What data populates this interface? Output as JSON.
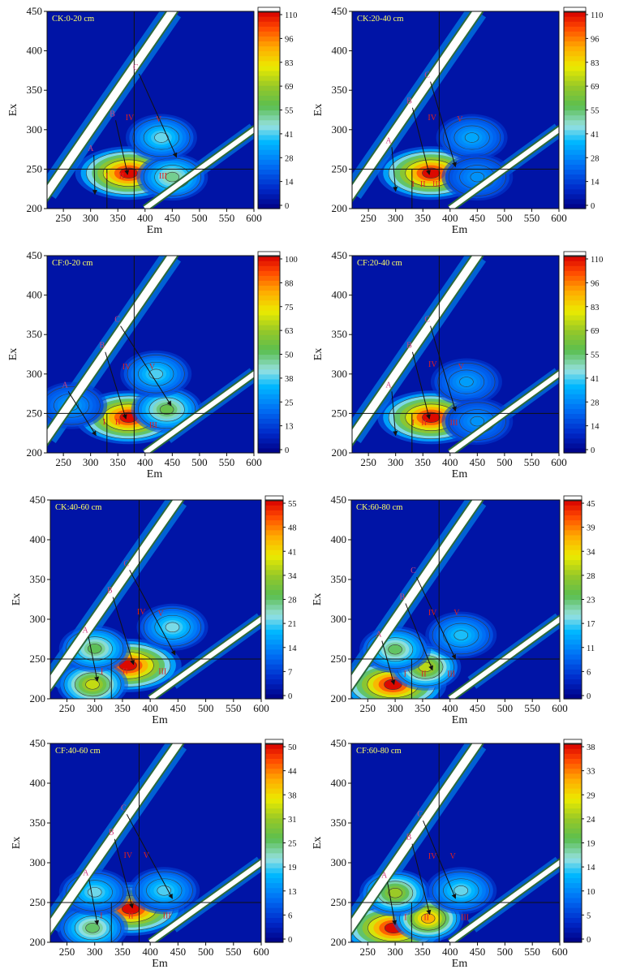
{
  "chart_data": [
    {
      "type": "heatmap",
      "title": "CK:0-20 cm",
      "xlabel": "Em",
      "ylabel": "Ex",
      "xlim": [
        220,
        600
      ],
      "ylim": [
        200,
        450
      ],
      "xticks": [
        "250",
        "300",
        "350",
        "400",
        "450",
        "500",
        "550",
        "600"
      ],
      "yticks": [
        "200",
        "250",
        "300",
        "350",
        "400",
        "450"
      ],
      "colorbar": {
        "min": 0,
        "max": 110,
        "ticks": [
          "0",
          "14",
          "28",
          "41",
          "55",
          "69",
          "83",
          "96",
          "110"
        ]
      },
      "region_lines": {
        "em": [
          330,
          380
        ],
        "ex": 250
      },
      "peaks": [
        {
          "em": 370,
          "ex": 245,
          "value": 110
        },
        {
          "em": 450,
          "ex": 240,
          "value": 45
        },
        {
          "em": 430,
          "ex": 290,
          "value": 35
        }
      ],
      "labels": [
        {
          "text": "A",
          "em": 300,
          "ex": 273,
          "to": [
            308,
            218
          ]
        },
        {
          "text": "B",
          "em": 340,
          "ex": 317,
          "to": [
            368,
            243
          ]
        },
        {
          "text": "C",
          "em": 383,
          "ex": 376,
          "to": [
            458,
            265
          ]
        },
        {
          "text": "I",
          "em": 330,
          "ex": 238
        },
        {
          "text": "II",
          "em": 357,
          "ex": 238
        },
        {
          "text": "III",
          "em": 433,
          "ex": 238
        },
        {
          "text": "IV",
          "em": 372,
          "ex": 312
        },
        {
          "text": "V",
          "em": 425,
          "ex": 310
        }
      ]
    },
    {
      "type": "heatmap",
      "title": "CK:20-40 cm",
      "xlabel": "Em",
      "ylabel": "Ex",
      "xlim": [
        220,
        600
      ],
      "ylim": [
        200,
        450
      ],
      "xticks": [
        "250",
        "300",
        "350",
        "400",
        "450",
        "500",
        "550",
        "600"
      ],
      "yticks": [
        "200",
        "250",
        "300",
        "350",
        "400",
        "450"
      ],
      "colorbar": {
        "min": 0,
        "max": 110,
        "ticks": [
          "0",
          "14",
          "28",
          "41",
          "55",
          "69",
          "83",
          "96",
          "110"
        ]
      },
      "region_lines": {
        "em": [
          330,
          380
        ],
        "ex": 250
      },
      "peaks": [
        {
          "em": 365,
          "ex": 245,
          "value": 110
        },
        {
          "em": 440,
          "ex": 290,
          "value": 24
        },
        {
          "em": 450,
          "ex": 240,
          "value": 20
        }
      ],
      "labels": [
        {
          "text": "A",
          "em": 287,
          "ex": 283,
          "to": [
            300,
            222
          ]
        },
        {
          "text": "B",
          "em": 325,
          "ex": 333,
          "to": [
            362,
            243
          ]
        },
        {
          "text": "C",
          "em": 358,
          "ex": 366,
          "to": [
            410,
            253
          ]
        },
        {
          "text": "I",
          "em": 332,
          "ex": 228
        },
        {
          "text": "II",
          "em": 350,
          "ex": 228
        },
        {
          "text": "III",
          "em": 375,
          "ex": 228
        },
        {
          "text": "IV",
          "em": 367,
          "ex": 312
        },
        {
          "text": "V",
          "em": 418,
          "ex": 310
        }
      ]
    },
    {
      "type": "heatmap",
      "title": "CF:0-20 cm",
      "xlabel": "Em",
      "ylabel": "Ex",
      "xlim": [
        220,
        600
      ],
      "ylim": [
        200,
        450
      ],
      "xticks": [
        "250",
        "300",
        "350",
        "400",
        "450",
        "500",
        "550",
        "600"
      ],
      "yticks": [
        "200",
        "250",
        "300",
        "350",
        "400",
        "450"
      ],
      "colorbar": {
        "min": 0,
        "max": 100,
        "ticks": [
          "0",
          "13",
          "25",
          "38",
          "50",
          "63",
          "75",
          "88",
          "100"
        ]
      },
      "region_lines": {
        "em": [
          330,
          380
        ],
        "ex": 250
      },
      "peaks": [
        {
          "em": 370,
          "ex": 245,
          "value": 100
        },
        {
          "em": 440,
          "ex": 255,
          "value": 48
        },
        {
          "em": 420,
          "ex": 300,
          "value": 30
        },
        {
          "em": 265,
          "ex": 260,
          "value": 20
        }
      ],
      "labels": [
        {
          "text": "A",
          "em": 253,
          "ex": 283,
          "to": [
            310,
            222
          ]
        },
        {
          "text": "B",
          "em": 321,
          "ex": 333,
          "to": [
            365,
            243
          ]
        },
        {
          "text": "C",
          "em": 349,
          "ex": 366,
          "to": [
            448,
            260
          ]
        },
        {
          "text": "I",
          "em": 325,
          "ex": 236
        },
        {
          "text": "II",
          "em": 350,
          "ex": 236
        },
        {
          "text": "III",
          "em": 415,
          "ex": 232
        },
        {
          "text": "IV",
          "em": 366,
          "ex": 306
        },
        {
          "text": "V",
          "em": 413,
          "ex": 306
        }
      ]
    },
    {
      "type": "heatmap",
      "title": "CF:20-40 cm",
      "xlabel": "Em",
      "ylabel": "Ex",
      "xlim": [
        220,
        600
      ],
      "ylim": [
        200,
        450
      ],
      "xticks": [
        "250",
        "300",
        "350",
        "400",
        "450",
        "500",
        "550",
        "600"
      ],
      "yticks": [
        "200",
        "250",
        "300",
        "350",
        "400",
        "450"
      ],
      "colorbar": {
        "min": 0,
        "max": 110,
        "ticks": [
          "0",
          "14",
          "28",
          "41",
          "55",
          "69",
          "83",
          "96",
          "110"
        ]
      },
      "region_lines": {
        "em": [
          330,
          380
        ],
        "ex": 250
      },
      "peaks": [
        {
          "em": 365,
          "ex": 245,
          "value": 110
        },
        {
          "em": 430,
          "ex": 290,
          "value": 22
        },
        {
          "em": 450,
          "ex": 240,
          "value": 20
        }
      ],
      "labels": [
        {
          "text": "A",
          "em": 287,
          "ex": 283,
          "to": [
            300,
            222
          ]
        },
        {
          "text": "B",
          "em": 325,
          "ex": 333,
          "to": [
            362,
            243
          ]
        },
        {
          "text": "C",
          "em": 358,
          "ex": 366,
          "to": [
            410,
            253
          ]
        },
        {
          "text": "I",
          "em": 332,
          "ex": 235
        },
        {
          "text": "II",
          "em": 352,
          "ex": 235
        },
        {
          "text": "III",
          "em": 407,
          "ex": 235
        },
        {
          "text": "IV",
          "em": 368,
          "ex": 309
        },
        {
          "text": "V",
          "em": 420,
          "ex": 306
        }
      ]
    },
    {
      "type": "heatmap",
      "title": "CK:40-60 cm",
      "xlabel": "Em",
      "ylabel": "Ex",
      "xlim": [
        220,
        600
      ],
      "ylim": [
        200,
        450
      ],
      "xticks": [
        "250",
        "300",
        "350",
        "400",
        "450",
        "500",
        "550",
        "600"
      ],
      "yticks": [
        "200",
        "250",
        "300",
        "350",
        "400",
        "450"
      ],
      "colorbar": {
        "min": 0,
        "max": 55,
        "ticks": [
          "0",
          "7",
          "14",
          "21",
          "28",
          "34",
          "41",
          "48",
          "55"
        ]
      },
      "region_lines": {
        "em": [
          330,
          380
        ],
        "ex": 250
      },
      "peaks": [
        {
          "em": 360,
          "ex": 242,
          "value": 55
        },
        {
          "em": 296,
          "ex": 218,
          "value": 35
        },
        {
          "em": 300,
          "ex": 263,
          "value": 25
        },
        {
          "em": 440,
          "ex": 290,
          "value": 18
        }
      ],
      "labels": [
        {
          "text": "A",
          "em": 283,
          "ex": 283,
          "to": [
            305,
            222
          ]
        },
        {
          "text": "B",
          "em": 327,
          "ex": 333,
          "to": [
            370,
            243
          ]
        },
        {
          "text": "C",
          "em": 357,
          "ex": 367,
          "to": [
            445,
            255
          ]
        },
        {
          "text": "I",
          "em": 313,
          "ex": 231
        },
        {
          "text": "II",
          "em": 355,
          "ex": 231
        },
        {
          "text": "III",
          "em": 422,
          "ex": 231
        },
        {
          "text": "IV",
          "em": 384,
          "ex": 306
        },
        {
          "text": "V",
          "em": 419,
          "ex": 304
        }
      ]
    },
    {
      "type": "heatmap",
      "title": "CK:60-80 cm",
      "xlabel": "Em",
      "ylabel": "Ex",
      "xlim": [
        220,
        600
      ],
      "ylim": [
        200,
        450
      ],
      "xticks": [
        "250",
        "300",
        "350",
        "400",
        "450",
        "500",
        "550",
        "600"
      ],
      "yticks": [
        "200",
        "250",
        "300",
        "350",
        "400",
        "450"
      ],
      "colorbar": {
        "min": 0,
        "max": 45,
        "ticks": [
          "0",
          "6",
          "11",
          "17",
          "23",
          "28",
          "34",
          "39",
          "45"
        ]
      },
      "region_lines": {
        "em": [
          330,
          380
        ],
        "ex": 250
      },
      "peaks": [
        {
          "em": 296,
          "ex": 218,
          "value": 45
        },
        {
          "em": 355,
          "ex": 240,
          "value": 28
        },
        {
          "em": 300,
          "ex": 262,
          "value": 20
        },
        {
          "em": 420,
          "ex": 280,
          "value": 12
        }
      ],
      "labels": [
        {
          "text": "A",
          "em": 270,
          "ex": 278,
          "to": [
            298,
            218
          ]
        },
        {
          "text": "B",
          "em": 313,
          "ex": 325,
          "to": [
            368,
            236
          ]
        },
        {
          "text": "C",
          "em": 333,
          "ex": 358,
          "to": [
            410,
            250
          ]
        },
        {
          "text": "I",
          "em": 318,
          "ex": 228
        },
        {
          "text": "II",
          "em": 352,
          "ex": 228
        },
        {
          "text": "III",
          "em": 402,
          "ex": 228
        },
        {
          "text": "IV",
          "em": 368,
          "ex": 305
        },
        {
          "text": "V",
          "em": 412,
          "ex": 305
        }
      ]
    },
    {
      "type": "heatmap",
      "title": "CF:40-60 cm",
      "xlabel": "Em",
      "ylabel": "Ex",
      "xlim": [
        220,
        600
      ],
      "ylim": [
        200,
        450
      ],
      "xticks": [
        "250",
        "300",
        "350",
        "400",
        "450",
        "500",
        "550",
        "600"
      ],
      "yticks": [
        "200",
        "250",
        "300",
        "350",
        "400",
        "450"
      ],
      "colorbar": {
        "min": 0,
        "max": 50,
        "ticks": [
          "0",
          "6",
          "13",
          "19",
          "25",
          "31",
          "38",
          "44",
          "50"
        ]
      },
      "region_lines": {
        "em": [
          330,
          380
        ],
        "ex": 250
      },
      "peaks": [
        {
          "em": 365,
          "ex": 242,
          "value": 50
        },
        {
          "em": 296,
          "ex": 218,
          "value": 22
        },
        {
          "em": 300,
          "ex": 263,
          "value": 16
        },
        {
          "em": 425,
          "ex": 265,
          "value": 15
        }
      ],
      "labels": [
        {
          "text": "A",
          "em": 284,
          "ex": 284,
          "to": [
            305,
            222
          ]
        },
        {
          "text": "B",
          "em": 330,
          "ex": 335,
          "to": [
            368,
            243
          ]
        },
        {
          "text": "C",
          "em": 352,
          "ex": 366,
          "to": [
            440,
            255
          ]
        },
        {
          "text": "I",
          "em": 312,
          "ex": 230
        },
        {
          "text": "II",
          "em": 365,
          "ex": 230
        },
        {
          "text": "III",
          "em": 430,
          "ex": 230
        },
        {
          "text": "IV",
          "em": 360,
          "ex": 306
        },
        {
          "text": "V",
          "em": 393,
          "ex": 306
        }
      ]
    },
    {
      "type": "heatmap",
      "title": "CF:60-80 cm",
      "xlabel": "Em",
      "ylabel": "Ex",
      "xlim": [
        220,
        600
      ],
      "ylim": [
        200,
        450
      ],
      "xticks": [
        "250",
        "300",
        "350",
        "400",
        "450",
        "500",
        "550",
        "600"
      ],
      "yticks": [
        "200",
        "250",
        "300",
        "350",
        "400",
        "450"
      ],
      "colorbar": {
        "min": 0,
        "max": 38,
        "ticks": [
          "0",
          "5",
          "10",
          "14",
          "19",
          "24",
          "29",
          "33",
          "38"
        ]
      },
      "region_lines": {
        "em": [
          330,
          380
        ],
        "ex": 250
      },
      "peaks": [
        {
          "em": 297,
          "ex": 218,
          "value": 38
        },
        {
          "em": 360,
          "ex": 230,
          "value": 30
        },
        {
          "em": 300,
          "ex": 262,
          "value": 22
        },
        {
          "em": 420,
          "ex": 265,
          "value": 12
        }
      ],
      "labels": [
        {
          "text": "A",
          "em": 280,
          "ex": 281,
          "to": [
            300,
            222
          ]
        },
        {
          "text": "B",
          "em": 325,
          "ex": 329,
          "to": [
            363,
            235
          ]
        },
        {
          "text": "C",
          "em": 345,
          "ex": 358,
          "to": [
            410,
            255
          ]
        },
        {
          "text": "I",
          "em": 319,
          "ex": 228
        },
        {
          "text": "II",
          "em": 357,
          "ex": 228
        },
        {
          "text": "III",
          "em": 427,
          "ex": 228
        },
        {
          "text": "IV",
          "em": 368,
          "ex": 305
        },
        {
          "text": "V",
          "em": 405,
          "ex": 305
        }
      ]
    }
  ]
}
